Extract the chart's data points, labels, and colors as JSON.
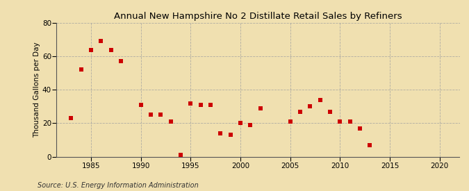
{
  "title": "Annual New Hampshire No 2 Distillate Retail Sales by Refiners",
  "ylabel": "Thousand Gallons per Day",
  "source": "Source: U.S. Energy Information Administration",
  "background_color": "#f0e0b0",
  "plot_bg_color": "#f0e0b0",
  "marker_color": "#cc0000",
  "grid_color": "#a0a0a0",
  "xlim": [
    1981.5,
    2022
  ],
  "ylim": [
    0,
    80
  ],
  "xticks": [
    1985,
    1990,
    1995,
    2000,
    2005,
    2010,
    2015,
    2020
  ],
  "yticks": [
    0,
    20,
    40,
    60,
    80
  ],
  "data": {
    "1983": 23,
    "1984": 52,
    "1985": 64,
    "1986": 69,
    "1987": 64,
    "1988": 57,
    "1990": 31,
    "1991": 25,
    "1992": 25,
    "1993": 21,
    "1994": 1,
    "1995": 32,
    "1996": 31,
    "1997": 31,
    "1998": 14,
    "1999": 13,
    "2000": 20,
    "2001": 19,
    "2002": 29,
    "2005": 21,
    "2006": 27,
    "2007": 30,
    "2008": 34,
    "2009": 27,
    "2010": 21,
    "2011": 21,
    "2012": 17,
    "2013": 7
  }
}
